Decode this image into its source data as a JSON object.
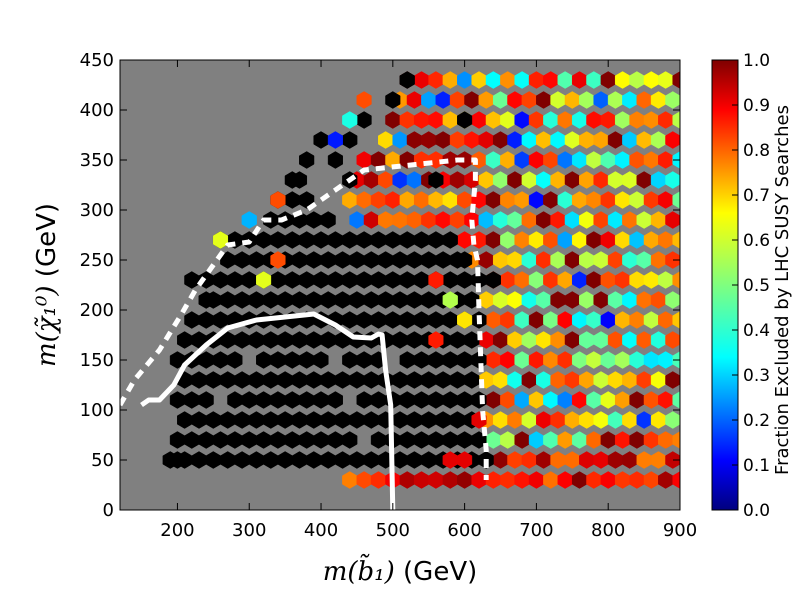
{
  "chart_data": {
    "type": "heatmap",
    "subtype": "hexbin",
    "xlabel": "m(b̃₁) (GeV)",
    "ylabel": "m(χ̃₁⁰) (GeV)",
    "xlim": [
      120,
      900
    ],
    "ylim": [
      0,
      450
    ],
    "x_ticks": [
      "200",
      "300",
      "400",
      "500",
      "600",
      "700",
      "800",
      "900"
    ],
    "y_ticks": [
      "0",
      "50",
      "100",
      "150",
      "200",
      "250",
      "300",
      "350",
      "400",
      "450"
    ],
    "colorbar": {
      "label": "Fraction Excluded by LHC SUSY Searches",
      "range": [
        0.0,
        1.0
      ],
      "ticks": [
        "0.0",
        "0.1",
        "0.2",
        "0.3",
        "0.4",
        "0.5",
        "0.6",
        "0.7",
        "0.8",
        "0.9",
        "1.0"
      ],
      "colormap": "jet"
    },
    "background_color": "#808080",
    "nodata_color": "#808080",
    "hexbin_grid": {
      "dx": 20,
      "dy": 20,
      "x_origin": 120,
      "y_origin": 0
    },
    "fully_excluded_region": {
      "description_rows": [
        {
          "y": 50,
          "x_from": 180,
          "x_to": 640
        },
        {
          "y": 70,
          "x_from": 200,
          "x_to": 620
        },
        {
          "y": 90,
          "x_from": 200,
          "x_to": 620
        },
        {
          "y": 110,
          "x_from": 200,
          "x_to": 620
        },
        {
          "y": 130,
          "x_from": 200,
          "x_to": 620
        },
        {
          "y": 150,
          "x_from": 200,
          "x_to": 620
        },
        {
          "y": 170,
          "x_from": 200,
          "x_to": 620
        },
        {
          "y": 190,
          "x_from": 220,
          "x_to": 620
        },
        {
          "y": 210,
          "x_from": 240,
          "x_to": 620
        },
        {
          "y": 230,
          "x_from": 240,
          "x_to": 620
        },
        {
          "y": 250,
          "x_from": 260,
          "x_to": 600
        },
        {
          "y": 270,
          "x_from": 260,
          "x_to": 580
        },
        {
          "y": 290,
          "x_from": 320,
          "x_to": 420
        },
        {
          "y": 310,
          "x_from": 340,
          "x_to": 380
        },
        {
          "y": 330,
          "x_from": 360,
          "x_to": 380
        }
      ],
      "value": 1.0
    },
    "gray_holes": [
      {
        "x": 200,
        "y": 90
      },
      {
        "x": 240,
        "y": 130
      },
      {
        "x": 280,
        "y": 50
      },
      {
        "x": 300,
        "y": 150
      },
      {
        "x": 320,
        "y": 90
      },
      {
        "x": 340,
        "y": 130
      },
      {
        "x": 360,
        "y": 50
      },
      {
        "x": 380,
        "y": 170
      },
      {
        "x": 440,
        "y": 110
      },
      {
        "x": 460,
        "y": 70
      },
      {
        "x": 500,
        "y": 150
      },
      {
        "x": 260,
        "y": 110
      },
      {
        "x": 420,
        "y": 150
      }
    ],
    "boundary_cells": [
      {
        "x": 200,
        "y": 50,
        "v": 1.0
      },
      {
        "x": 220,
        "y": 230,
        "v": 1.0
      },
      {
        "x": 240,
        "y": 210,
        "v": 1.0
      },
      {
        "x": 260,
        "y": 270,
        "v": 0.6
      },
      {
        "x": 300,
        "y": 290,
        "v": 0.3
      },
      {
        "x": 340,
        "y": 310,
        "v": 0.8
      },
      {
        "x": 360,
        "y": 330,
        "v": 1.0
      },
      {
        "x": 380,
        "y": 350,
        "v": 1.0
      },
      {
        "x": 420,
        "y": 370,
        "v": 0.15
      },
      {
        "x": 440,
        "y": 390,
        "v": 0.4
      },
      {
        "x": 460,
        "y": 410,
        "v": 0.8
      },
      {
        "x": 520,
        "y": 430,
        "v": 1.0
      },
      {
        "x": 560,
        "y": 230,
        "v": 0.85
      },
      {
        "x": 580,
        "y": 210,
        "v": 0.55
      },
      {
        "x": 560,
        "y": 170,
        "v": 0.85
      },
      {
        "x": 600,
        "y": 190,
        "v": 0.65
      },
      {
        "x": 620,
        "y": 90,
        "v": 0.9
      },
      {
        "x": 600,
        "y": 50,
        "v": 0.9
      },
      {
        "x": 580,
        "y": 50,
        "v": 0.9
      },
      {
        "x": 320,
        "y": 230,
        "v": 0.6
      },
      {
        "x": 340,
        "y": 250,
        "v": 0.8
      }
    ],
    "contours": [
      {
        "name": "solid",
        "style": "solid",
        "color": "#ffffff",
        "points": [
          [
            150,
            105
          ],
          [
            160,
            110
          ],
          [
            175,
            110
          ],
          [
            195,
            125
          ],
          [
            210,
            145
          ],
          [
            240,
            165
          ],
          [
            270,
            182
          ],
          [
            310,
            190
          ],
          [
            350,
            193
          ],
          [
            390,
            196
          ],
          [
            420,
            185
          ],
          [
            445,
            173
          ],
          [
            470,
            172
          ],
          [
            480,
            176
          ],
          [
            485,
            175
          ],
          [
            490,
            140
          ],
          [
            497,
            105
          ],
          [
            500,
            0
          ]
        ]
      },
      {
        "name": "dashed",
        "style": "dashed",
        "color": "#ffffff",
        "points": [
          [
            120,
            105
          ],
          [
            140,
            130
          ],
          [
            175,
            160
          ],
          [
            205,
            195
          ],
          [
            225,
            220
          ],
          [
            250,
            245
          ],
          [
            270,
            265
          ],
          [
            300,
            268
          ],
          [
            320,
            290
          ],
          [
            345,
            290
          ],
          [
            380,
            300
          ],
          [
            420,
            320
          ],
          [
            460,
            340
          ],
          [
            590,
            350
          ],
          [
            615,
            350
          ],
          [
            615,
            330
          ],
          [
            610,
            290
          ],
          [
            613,
            265
          ],
          [
            618,
            250
          ],
          [
            620,
            200
          ],
          [
            625,
            100
          ],
          [
            630,
            60
          ],
          [
            630,
            30
          ]
        ]
      }
    ],
    "color_field_region": {
      "x_from": 440,
      "x_to": 900,
      "y_from": 30,
      "y_to": 430
    }
  }
}
